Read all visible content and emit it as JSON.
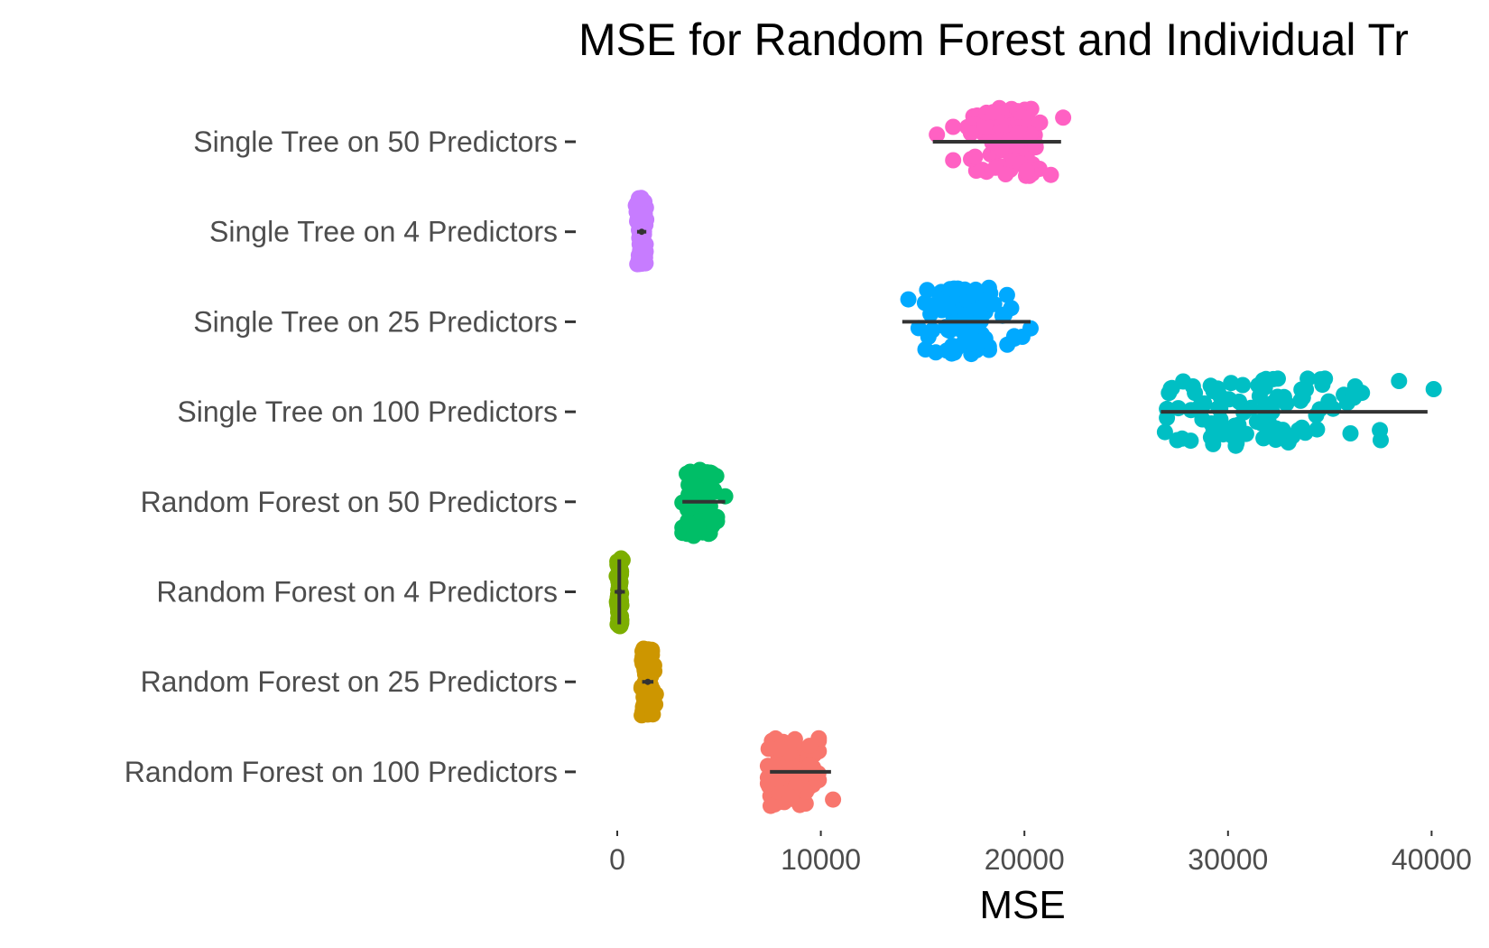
{
  "chart_data": {
    "type": "scatter",
    "subtype": "jittered strip plot with per-group range lines",
    "title": "MSE for Random Forest and Individual Tr",
    "xlabel": "MSE",
    "ylabel": "",
    "xlim": [
      -600,
      42000
    ],
    "x_ticks": [
      0,
      10000,
      20000,
      30000,
      40000
    ],
    "x_tick_labels": [
      "0",
      "10000",
      "20000",
      "30000",
      "40000"
    ],
    "grid": false,
    "legend": "none",
    "categories": [
      "Single Tree on 50 Predictors",
      "Single Tree on 4 Predictors",
      "Single Tree on 25 Predictors",
      "Single Tree on 100 Predictors",
      "Random Forest on 50 Predictors",
      "Random Forest on 4 Predictors",
      "Random Forest on 25 Predictors",
      "Random Forest on 100 Predictors"
    ],
    "series": [
      {
        "category": "Single Tree on 50 Predictors",
        "color": "#FF61C3",
        "min": 15500,
        "max": 21800,
        "center": 19000,
        "spread": 1100,
        "n": 100,
        "lo": 16500,
        "hi": 21300,
        "outliers": [
          15700,
          21900
        ]
      },
      {
        "category": "Single Tree on 4 Predictors",
        "color": "#C77CFF",
        "min": 1150,
        "max": 1250,
        "center": 1200,
        "spread": 110,
        "n": 100,
        "lo": 850,
        "hi": 1550,
        "outliers": []
      },
      {
        "category": "Single Tree on 25 Predictors",
        "color": "#00A9FF",
        "min": 14000,
        "max": 20300,
        "center": 17000,
        "spread": 1100,
        "n": 100,
        "lo": 14800,
        "hi": 19500,
        "outliers": [
          14300,
          19900,
          20300
        ]
      },
      {
        "category": "Single Tree on 100 Predictors",
        "color": "#00BFC4",
        "min": 26700,
        "max": 39800,
        "center": 31500,
        "spread": 2800,
        "n": 100,
        "lo": 27000,
        "hi": 38500,
        "outliers": [
          26900,
          37500,
          38400,
          40100
        ]
      },
      {
        "category": "Random Forest on 50 Predictors",
        "color": "#00BE67",
        "min": 3200,
        "max": 5300,
        "center": 4000,
        "spread": 420,
        "n": 100,
        "lo": 3200,
        "hi": 4900,
        "outliers": [
          5300
        ]
      },
      {
        "category": "Random Forest on 4 Predictors",
        "color": "#7CAE00",
        "min": 50,
        "max": 200,
        "center": 100,
        "spread": 60,
        "n": 100,
        "lo": -120,
        "hi": 380,
        "outliers": []
      },
      {
        "category": "Random Forest on 25 Predictors",
        "color": "#CD9600",
        "min": 1400,
        "max": 1600,
        "center": 1500,
        "spread": 170,
        "n": 100,
        "lo": 1000,
        "hi": 2100,
        "outliers": []
      },
      {
        "category": "Random Forest on 100 Predictors",
        "color": "#F8766D",
        "min": 7500,
        "max": 10500,
        "center": 8600,
        "spread": 650,
        "n": 100,
        "lo": 7400,
        "hi": 9900,
        "outliers": [
          10600
        ]
      }
    ]
  }
}
